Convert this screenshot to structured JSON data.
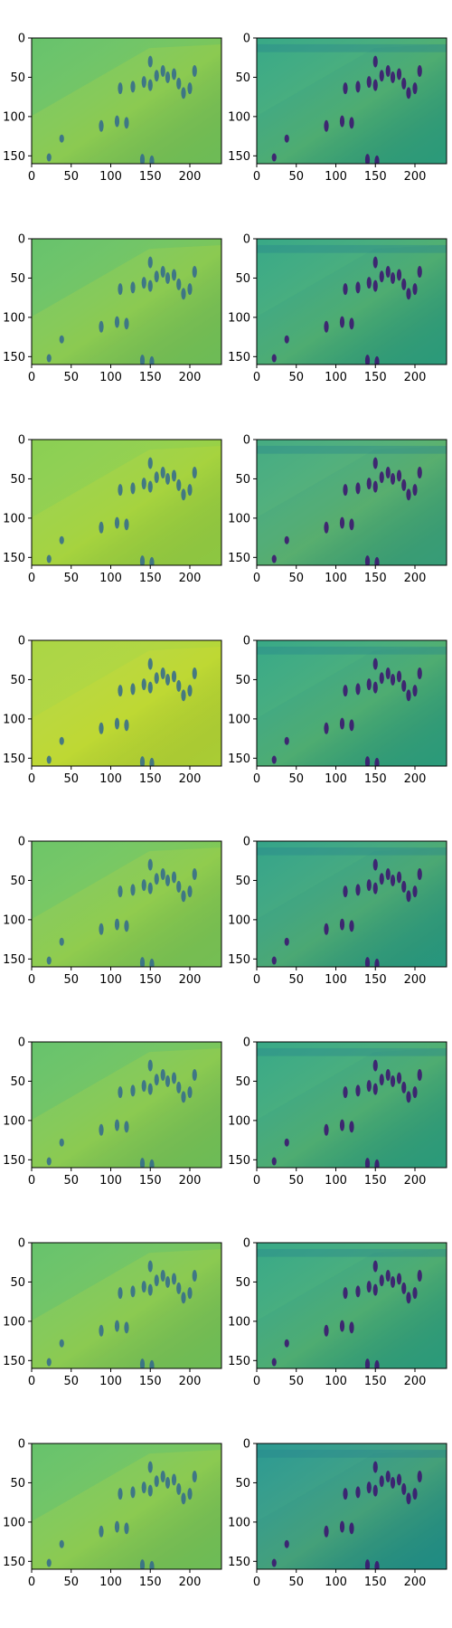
{
  "chart_data": {
    "type": "heatmap",
    "layout": {
      "rows": 8,
      "cols": 2
    },
    "colormap": "viridis",
    "x_ticks": [
      0,
      50,
      100,
      150,
      200
    ],
    "y_ticks": [
      0,
      50,
      100,
      150
    ],
    "xlim": [
      0,
      240
    ],
    "ylim": [
      160,
      0
    ],
    "grid": false,
    "panels": [
      {
        "row": 1,
        "col": 1,
        "kind": "reconstruction",
        "background": "#5fbf63"
      },
      {
        "row": 1,
        "col": 2,
        "kind": "residual",
        "background": "#2ea47f"
      },
      {
        "row": 2,
        "col": 1,
        "kind": "reconstruction",
        "background": "#5fbf63"
      },
      {
        "row": 2,
        "col": 2,
        "kind": "residual",
        "background": "#2ea47f"
      },
      {
        "row": 3,
        "col": 1,
        "kind": "reconstruction",
        "background": "#84cc4a"
      },
      {
        "row": 3,
        "col": 2,
        "kind": "residual",
        "background": "#3ba77b"
      },
      {
        "row": 4,
        "col": 1,
        "kind": "reconstruction",
        "background": "#a6d33a"
      },
      {
        "row": 4,
        "col": 2,
        "kind": "residual",
        "background": "#2ea47f"
      },
      {
        "row": 5,
        "col": 1,
        "kind": "reconstruction",
        "background": "#66c25f"
      },
      {
        "row": 5,
        "col": 2,
        "kind": "residual",
        "background": "#2a9f82"
      },
      {
        "row": 6,
        "col": 1,
        "kind": "reconstruction",
        "background": "#5fbf63"
      },
      {
        "row": 6,
        "col": 2,
        "kind": "residual",
        "background": "#2ea47f"
      },
      {
        "row": 7,
        "col": 1,
        "kind": "reconstruction",
        "background": "#5fbf63"
      },
      {
        "row": 7,
        "col": 2,
        "kind": "residual",
        "background": "#2ea47f"
      },
      {
        "row": 8,
        "col": 1,
        "kind": "reconstruction",
        "background": "#5fbf63"
      },
      {
        "row": 8,
        "col": 2,
        "kind": "residual",
        "background": "#21948a"
      }
    ]
  }
}
